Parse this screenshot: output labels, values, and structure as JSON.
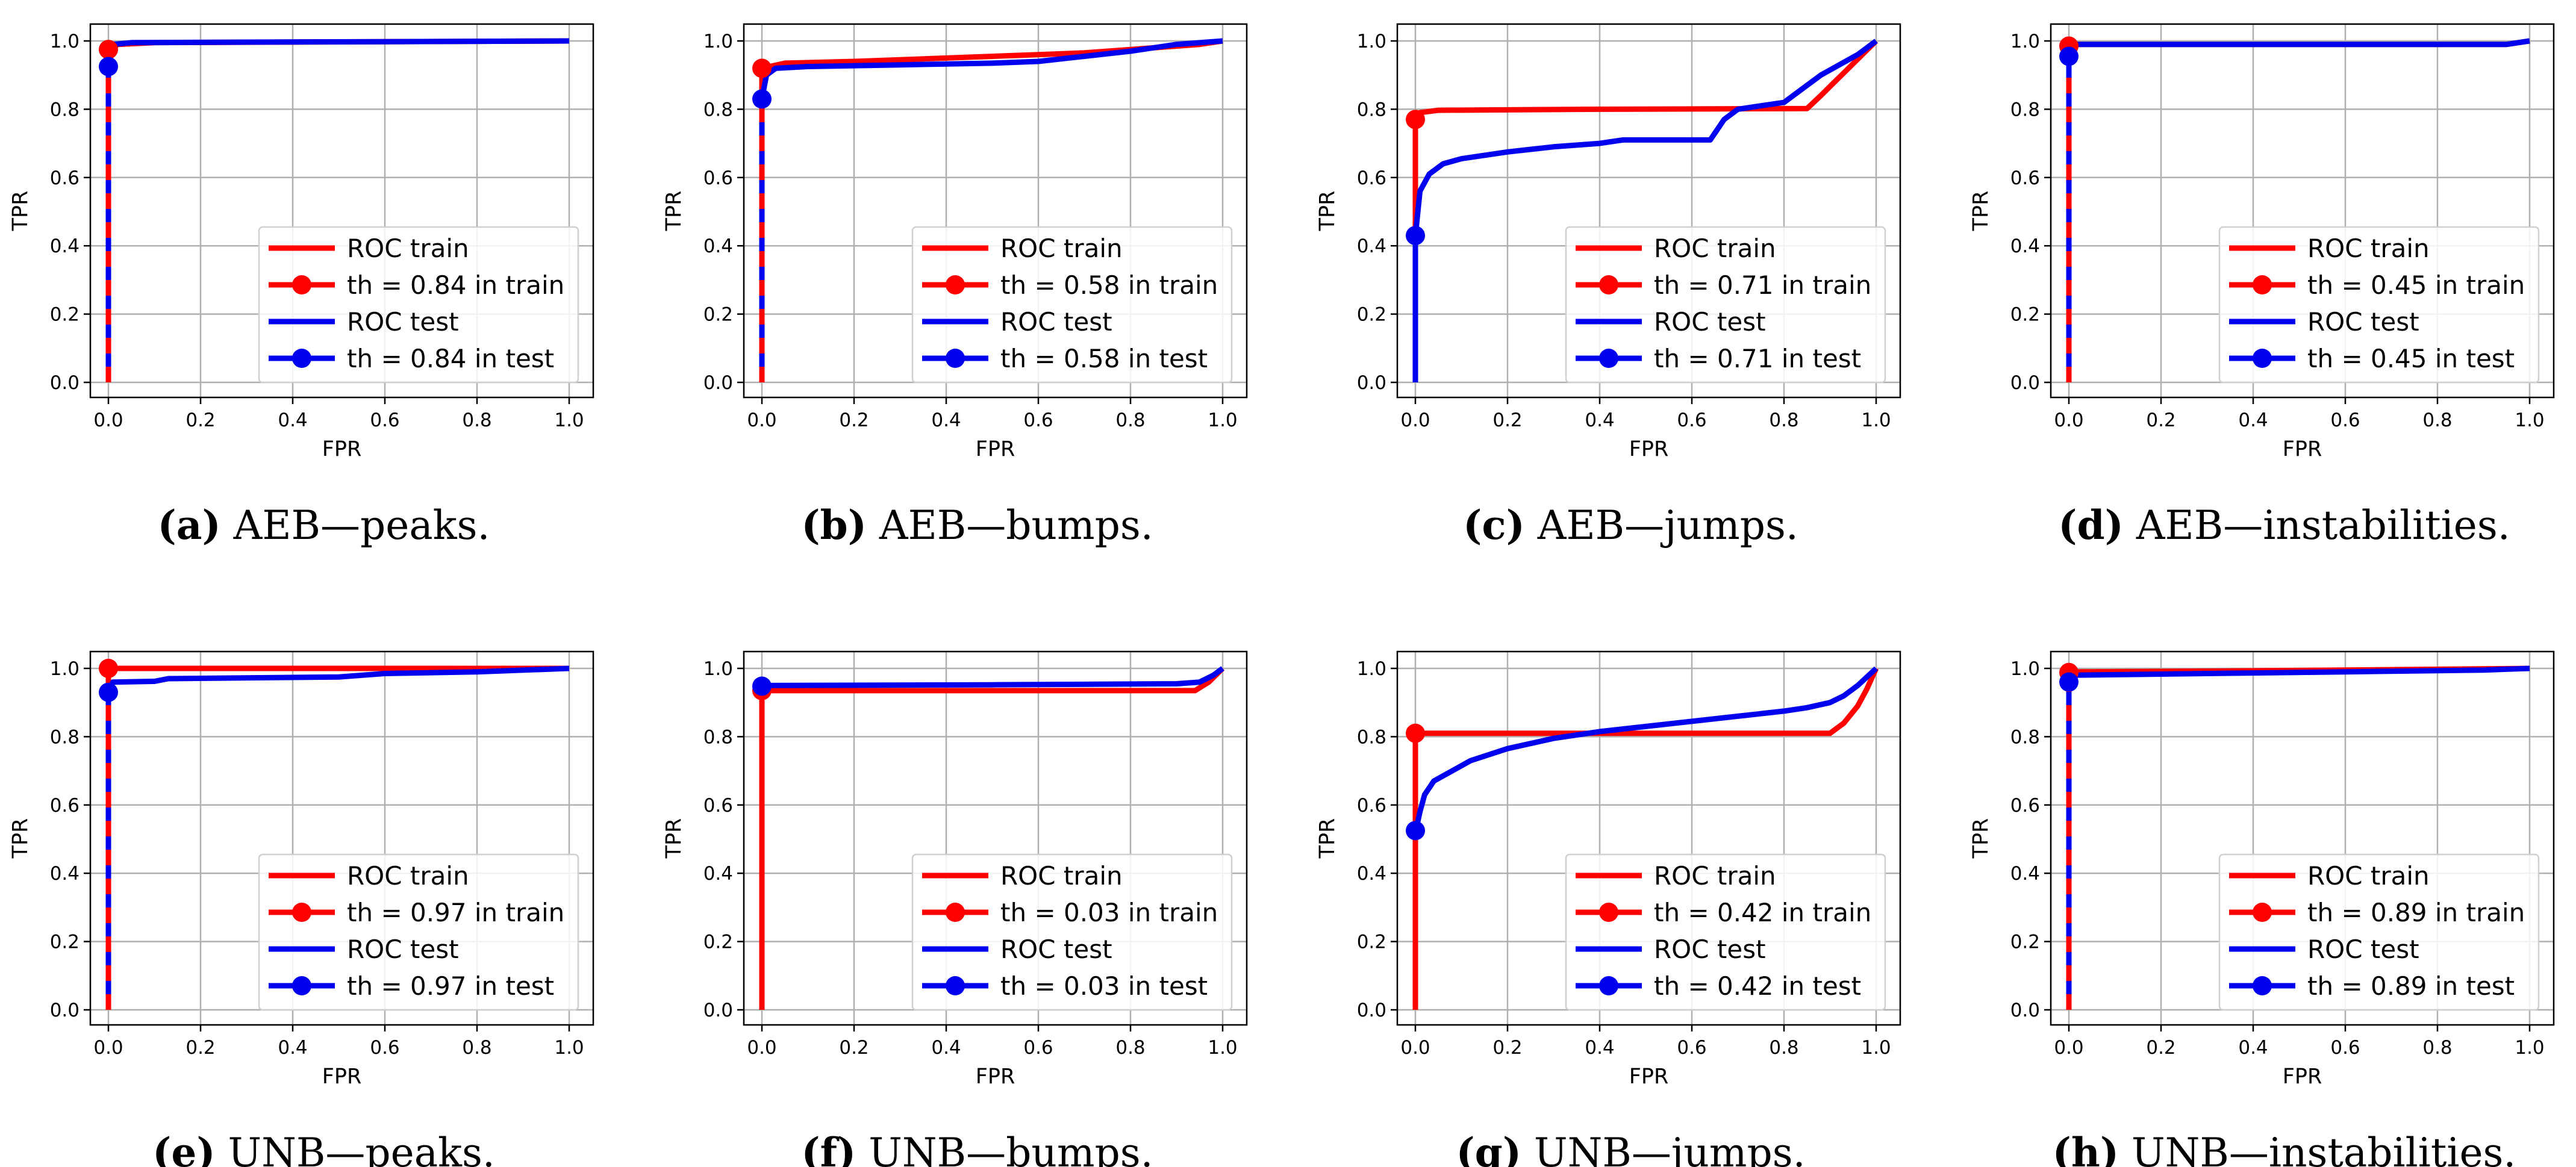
{
  "colors": {
    "train": "#ff0000",
    "test": "#0000ee",
    "grid": "#b0b0b0",
    "axis": "#000000"
  },
  "chart_data": [
    {
      "type": "line",
      "id": "a",
      "caption": {
        "letter": "(a)",
        "text": " AEB—peaks."
      },
      "xlabel": "FPR",
      "ylabel": "TPR",
      "xlim": [
        0,
        1
      ],
      "ylim": [
        0,
        1
      ],
      "grid": true,
      "xticks": [
        "0.0",
        "0.2",
        "0.4",
        "0.6",
        "0.8",
        "1.0"
      ],
      "yticks": [
        "0.0",
        "0.2",
        "0.4",
        "0.6",
        "0.8",
        "1.0"
      ],
      "legend": {
        "position": "lower-right",
        "entries": [
          "ROC train",
          "th = 0.84 in train",
          "ROC test",
          "th = 0.84 in test"
        ]
      },
      "series": [
        {
          "name": "ROC train",
          "color": "red",
          "points": [
            [
              0,
              0
            ],
            [
              0,
              0.97
            ],
            [
              0.02,
              0.99
            ],
            [
              0.1,
              0.995
            ],
            [
              1,
              1
            ]
          ]
        },
        {
          "name": "ROC test",
          "color": "blue",
          "dashed": true,
          "points": [
            [
              0,
              0
            ],
            [
              0,
              0.93
            ],
            [
              0.01,
              0.99
            ],
            [
              0.05,
              0.995
            ],
            [
              1,
              1
            ]
          ]
        }
      ],
      "markers": [
        {
          "name": "th = 0.84 in train",
          "color": "red",
          "x": 0.0,
          "y": 0.975
        },
        {
          "name": "th = 0.84 in test",
          "color": "blue",
          "x": 0.0,
          "y": 0.925
        }
      ]
    },
    {
      "type": "line",
      "id": "b",
      "caption": {
        "letter": "(b)",
        "text": " AEB—bumps."
      },
      "xlabel": "FPR",
      "ylabel": "TPR",
      "xlim": [
        0,
        1
      ],
      "ylim": [
        0,
        1
      ],
      "grid": true,
      "xticks": [
        "0.0",
        "0.2",
        "0.4",
        "0.6",
        "0.8",
        "1.0"
      ],
      "yticks": [
        "0.0",
        "0.2",
        "0.4",
        "0.6",
        "0.8",
        "1.0"
      ],
      "legend": {
        "position": "lower-right",
        "entries": [
          "ROC train",
          "th = 0.58 in train",
          "ROC test",
          "th = 0.58 in test"
        ]
      },
      "series": [
        {
          "name": "ROC train",
          "color": "red",
          "points": [
            [
              0,
              0
            ],
            [
              0,
              0.92
            ],
            [
              0.05,
              0.935
            ],
            [
              0.2,
              0.94
            ],
            [
              0.4,
              0.95
            ],
            [
              0.6,
              0.96
            ],
            [
              0.7,
              0.965
            ],
            [
              0.8,
              0.975
            ],
            [
              0.95,
              0.99
            ],
            [
              1,
              1
            ]
          ]
        },
        {
          "name": "ROC test",
          "color": "blue",
          "dashed": true,
          "points": [
            [
              0,
              0
            ],
            [
              0,
              0.83
            ],
            [
              0.01,
              0.9
            ],
            [
              0.03,
              0.92
            ],
            [
              0.1,
              0.925
            ],
            [
              0.3,
              0.93
            ],
            [
              0.5,
              0.935
            ],
            [
              0.6,
              0.94
            ],
            [
              0.7,
              0.955
            ],
            [
              0.8,
              0.97
            ],
            [
              0.9,
              0.99
            ],
            [
              1,
              1
            ]
          ]
        }
      ],
      "markers": [
        {
          "name": "th = 0.58 in train",
          "color": "red",
          "x": 0.0,
          "y": 0.92
        },
        {
          "name": "th = 0.58 in test",
          "color": "blue",
          "x": 0.0,
          "y": 0.83
        }
      ]
    },
    {
      "type": "line",
      "id": "c",
      "caption": {
        "letter": "(c)",
        "text": " AEB—jumps."
      },
      "xlabel": "FPR",
      "ylabel": "TPR",
      "xlim": [
        0,
        1
      ],
      "ylim": [
        0,
        1
      ],
      "grid": true,
      "xticks": [
        "0.0",
        "0.2",
        "0.4",
        "0.6",
        "0.8",
        "1.0"
      ],
      "yticks": [
        "0.0",
        "0.2",
        "0.4",
        "0.6",
        "0.8",
        "1.0"
      ],
      "legend": {
        "position": "lower-right",
        "entries": [
          "ROC train",
          "th = 0.71 in train",
          "ROC test",
          "th = 0.71 in test"
        ]
      },
      "series": [
        {
          "name": "ROC train",
          "color": "red",
          "points": [
            [
              0,
              0
            ],
            [
              0,
              0.77
            ],
            [
              0.01,
              0.79
            ],
            [
              0.05,
              0.797
            ],
            [
              0.4,
              0.8
            ],
            [
              0.85,
              0.802
            ],
            [
              0.88,
              0.84
            ],
            [
              0.91,
              0.88
            ],
            [
              0.94,
              0.92
            ],
            [
              0.97,
              0.96
            ],
            [
              1,
              1
            ]
          ]
        },
        {
          "name": "ROC test",
          "color": "blue",
          "points": [
            [
              0,
              0
            ],
            [
              0,
              0.43
            ],
            [
              0.01,
              0.56
            ],
            [
              0.03,
              0.61
            ],
            [
              0.06,
              0.64
            ],
            [
              0.1,
              0.655
            ],
            [
              0.2,
              0.675
            ],
            [
              0.3,
              0.69
            ],
            [
              0.4,
              0.7
            ],
            [
              0.45,
              0.71
            ],
            [
              0.64,
              0.71
            ],
            [
              0.67,
              0.77
            ],
            [
              0.7,
              0.8
            ],
            [
              0.75,
              0.81
            ],
            [
              0.8,
              0.82
            ],
            [
              0.84,
              0.86
            ],
            [
              0.88,
              0.9
            ],
            [
              0.92,
              0.93
            ],
            [
              0.96,
              0.96
            ],
            [
              1,
              1
            ]
          ]
        }
      ],
      "markers": [
        {
          "name": "th = 0.71 in train",
          "color": "red",
          "x": 0.0,
          "y": 0.77
        },
        {
          "name": "th = 0.71 in test",
          "color": "blue",
          "x": 0.0,
          "y": 0.43
        }
      ]
    },
    {
      "type": "line",
      "id": "d",
      "caption": {
        "letter": "(d)",
        "text": " AEB—instabilities."
      },
      "xlabel": "FPR",
      "ylabel": "TPR",
      "xlim": [
        0,
        1
      ],
      "ylim": [
        0,
        1
      ],
      "grid": true,
      "xticks": [
        "0.0",
        "0.2",
        "0.4",
        "0.6",
        "0.8",
        "1.0"
      ],
      "yticks": [
        "0.0",
        "0.2",
        "0.4",
        "0.6",
        "0.8",
        "1.0"
      ],
      "legend": {
        "position": "lower-right",
        "entries": [
          "ROC train",
          "th = 0.45 in train",
          "ROC test",
          "th = 0.45 in test"
        ]
      },
      "series": [
        {
          "name": "ROC train",
          "color": "red",
          "points": [
            [
              0,
              0
            ],
            [
              0,
              0.98
            ],
            [
              0.01,
              0.99
            ],
            [
              0.95,
              0.99
            ],
            [
              1,
              1
            ]
          ]
        },
        {
          "name": "ROC test",
          "color": "blue",
          "dashed": true,
          "points": [
            [
              0,
              0
            ],
            [
              0,
              0.96
            ],
            [
              0.01,
              0.99
            ],
            [
              0.95,
              0.99
            ],
            [
              1,
              1
            ]
          ]
        }
      ],
      "markers": [
        {
          "name": "th = 0.45 in train",
          "color": "red",
          "x": 0.0,
          "y": 0.985
        },
        {
          "name": "th = 0.45 in test",
          "color": "blue",
          "x": 0.0,
          "y": 0.955
        }
      ]
    },
    {
      "type": "line",
      "id": "e",
      "caption": {
        "letter": "(e)",
        "text": " UNB—peaks."
      },
      "xlabel": "FPR",
      "ylabel": "TPR",
      "xlim": [
        0,
        1
      ],
      "ylim": [
        0,
        1
      ],
      "grid": true,
      "xticks": [
        "0.0",
        "0.2",
        "0.4",
        "0.6",
        "0.8",
        "1.0"
      ],
      "yticks": [
        "0.0",
        "0.2",
        "0.4",
        "0.6",
        "0.8",
        "1.0"
      ],
      "legend": {
        "position": "lower-right",
        "entries": [
          "ROC train",
          "th = 0.97 in train",
          "ROC test",
          "th = 0.97 in test"
        ]
      },
      "series": [
        {
          "name": "ROC train",
          "color": "red",
          "points": [
            [
              0,
              0
            ],
            [
              0,
              1
            ],
            [
              1,
              1
            ]
          ]
        },
        {
          "name": "ROC test",
          "color": "blue",
          "dashed": true,
          "points": [
            [
              0,
              0
            ],
            [
              0,
              0.93
            ],
            [
              0.01,
              0.96
            ],
            [
              0.1,
              0.962
            ],
            [
              0.13,
              0.97
            ],
            [
              0.5,
              0.975
            ],
            [
              0.6,
              0.985
            ],
            [
              0.8,
              0.99
            ],
            [
              1,
              1
            ]
          ]
        }
      ],
      "markers": [
        {
          "name": "th = 0.97 in train",
          "color": "red",
          "x": 0.0,
          "y": 1.0
        },
        {
          "name": "th = 0.97 in test",
          "color": "blue",
          "x": 0.0,
          "y": 0.93
        }
      ]
    },
    {
      "type": "line",
      "id": "f",
      "caption": {
        "letter": "(f)",
        "text": " UNB—bumps."
      },
      "xlabel": "FPR",
      "ylabel": "TPR",
      "xlim": [
        0,
        1
      ],
      "ylim": [
        0,
        1
      ],
      "grid": true,
      "xticks": [
        "0.0",
        "0.2",
        "0.4",
        "0.6",
        "0.8",
        "1.0"
      ],
      "yticks": [
        "0.0",
        "0.2",
        "0.4",
        "0.6",
        "0.8",
        "1.0"
      ],
      "legend": {
        "position": "lower-right",
        "entries": [
          "ROC train",
          "th = 0.03 in train",
          "ROC test",
          "th = 0.03 in test"
        ]
      },
      "series": [
        {
          "name": "ROC train",
          "color": "red",
          "points": [
            [
              0,
              0
            ],
            [
              0,
              0.93
            ],
            [
              0.01,
              0.935
            ],
            [
              0.94,
              0.935
            ],
            [
              0.97,
              0.96
            ],
            [
              1,
              1
            ]
          ]
        },
        {
          "name": "ROC test",
          "color": "blue",
          "points": [
            [
              0,
              0.95
            ],
            [
              0.01,
              0.95
            ],
            [
              0.5,
              0.952
            ],
            [
              0.9,
              0.955
            ],
            [
              0.95,
              0.96
            ],
            [
              0.98,
              0.98
            ],
            [
              1,
              1
            ]
          ]
        }
      ],
      "markers": [
        {
          "name": "th = 0.03 in train",
          "color": "red",
          "x": 0.0,
          "y": 0.935
        },
        {
          "name": "th = 0.03 in test",
          "color": "blue",
          "x": 0.0,
          "y": 0.948
        }
      ]
    },
    {
      "type": "line",
      "id": "g",
      "caption": {
        "letter": "(g)",
        "text": " UNB—jumps."
      },
      "xlabel": "FPR",
      "ylabel": "TPR",
      "xlim": [
        0,
        1
      ],
      "ylim": [
        0,
        1
      ],
      "grid": true,
      "xticks": [
        "0.0",
        "0.2",
        "0.4",
        "0.6",
        "0.8",
        "1.0"
      ],
      "yticks": [
        "0.0",
        "0.2",
        "0.4",
        "0.6",
        "0.8",
        "1.0"
      ],
      "legend": {
        "position": "lower-right",
        "entries": [
          "ROC train",
          "th = 0.42 in train",
          "ROC test",
          "th = 0.42 in test"
        ]
      },
      "series": [
        {
          "name": "ROC train",
          "color": "red",
          "points": [
            [
              0,
              0
            ],
            [
              0,
              0.81
            ],
            [
              0.9,
              0.81
            ],
            [
              0.93,
              0.84
            ],
            [
              0.96,
              0.89
            ],
            [
              0.98,
              0.94
            ],
            [
              1,
              1
            ]
          ]
        },
        {
          "name": "ROC test",
          "color": "blue",
          "points": [
            [
              0,
              0.52
            ],
            [
              0.01,
              0.58
            ],
            [
              0.02,
              0.63
            ],
            [
              0.04,
              0.67
            ],
            [
              0.08,
              0.7
            ],
            [
              0.12,
              0.73
            ],
            [
              0.2,
              0.765
            ],
            [
              0.3,
              0.795
            ],
            [
              0.4,
              0.815
            ],
            [
              0.5,
              0.83
            ],
            [
              0.6,
              0.845
            ],
            [
              0.7,
              0.86
            ],
            [
              0.8,
              0.875
            ],
            [
              0.85,
              0.885
            ],
            [
              0.9,
              0.9
            ],
            [
              0.93,
              0.92
            ],
            [
              0.96,
              0.95
            ],
            [
              1,
              1
            ]
          ]
        }
      ],
      "markers": [
        {
          "name": "th = 0.42 in train",
          "color": "red",
          "x": 0.0,
          "y": 0.81
        },
        {
          "name": "th = 0.42 in test",
          "color": "blue",
          "x": 0.0,
          "y": 0.525
        }
      ]
    },
    {
      "type": "line",
      "id": "h",
      "caption": {
        "letter": "(h)",
        "text": " UNB—instabilities."
      },
      "xlabel": "FPR",
      "ylabel": "TPR",
      "xlim": [
        0,
        1
      ],
      "ylim": [
        0,
        1
      ],
      "grid": true,
      "xticks": [
        "0.0",
        "0.2",
        "0.4",
        "0.6",
        "0.8",
        "1.0"
      ],
      "yticks": [
        "0.0",
        "0.2",
        "0.4",
        "0.6",
        "0.8",
        "1.0"
      ],
      "legend": {
        "position": "lower-right",
        "entries": [
          "ROC train",
          "th = 0.89 in train",
          "ROC test",
          "th = 0.89 in test"
        ]
      },
      "series": [
        {
          "name": "ROC train",
          "color": "red",
          "points": [
            [
              0,
              0
            ],
            [
              0,
              0.99
            ],
            [
              0.02,
              0.99
            ],
            [
              0.3,
              0.992
            ],
            [
              0.6,
              0.995
            ],
            [
              1,
              1
            ]
          ]
        },
        {
          "name": "ROC test",
          "color": "blue",
          "dashed": true,
          "points": [
            [
              0,
              0
            ],
            [
              0,
              0.96
            ],
            [
              0.01,
              0.98
            ],
            [
              0.3,
              0.985
            ],
            [
              0.6,
              0.99
            ],
            [
              0.9,
              0.995
            ],
            [
              1,
              1
            ]
          ]
        }
      ],
      "markers": [
        {
          "name": "th = 0.89 in train",
          "color": "red",
          "x": 0.0,
          "y": 0.988
        },
        {
          "name": "th = 0.89 in test",
          "color": "blue",
          "x": 0.0,
          "y": 0.96
        }
      ]
    }
  ]
}
